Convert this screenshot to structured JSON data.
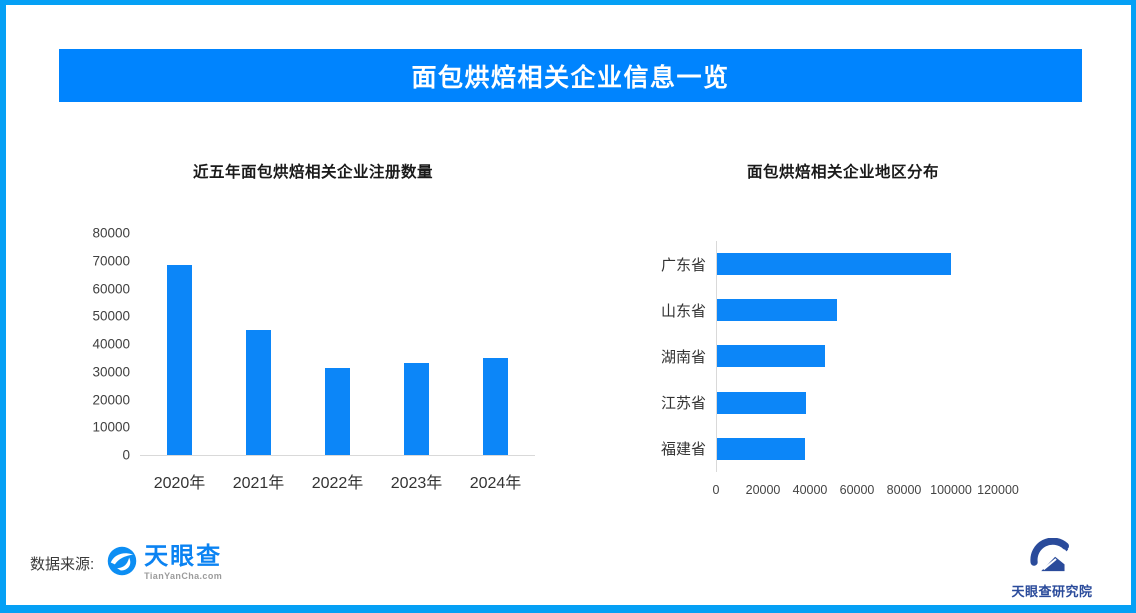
{
  "header": {
    "title": "面包烘焙相关企业信息一览"
  },
  "colors": {
    "border": "#05a0f5",
    "banner": "#0084fe",
    "bar": "#0c86f8",
    "tyc_blue": "#0b83f2",
    "research_navy": "#2a4b9b",
    "axis_line": "#d9d9d9"
  },
  "chart_data": [
    {
      "type": "bar",
      "orientation": "vertical",
      "title": "近五年面包烘焙相关企业注册数量",
      "categories": [
        "2020年",
        "2021年",
        "2022年",
        "2023年",
        "2024年"
      ],
      "values": [
        68500,
        45000,
        31500,
        33000,
        35000
      ],
      "xlabel": "",
      "ylabel": "",
      "ylim": [
        0,
        80000
      ],
      "yticks": [
        0,
        10000,
        20000,
        30000,
        40000,
        50000,
        60000,
        70000,
        80000
      ],
      "grid": false,
      "legend": false,
      "bar_color": "#0c86f8"
    },
    {
      "type": "bar",
      "orientation": "horizontal",
      "title": "面包烘焙相关企业地区分布",
      "categories": [
        "广东省",
        "山东省",
        "湖南省",
        "江苏省",
        "福建省"
      ],
      "values": [
        99500,
        51000,
        46000,
        38000,
        37600
      ],
      "xlabel": "",
      "ylabel": "",
      "xlim": [
        0,
        120000
      ],
      "xticks": [
        0,
        20000,
        40000,
        60000,
        80000,
        100000,
        120000
      ],
      "grid": false,
      "legend": false,
      "bar_color": "#0c86f8"
    }
  ],
  "footer": {
    "source_label": "数据来源:",
    "tianyancha": {
      "name": "天眼查",
      "domain": "TianYanCha.com"
    },
    "research": {
      "name": "天眼查研究院"
    }
  }
}
